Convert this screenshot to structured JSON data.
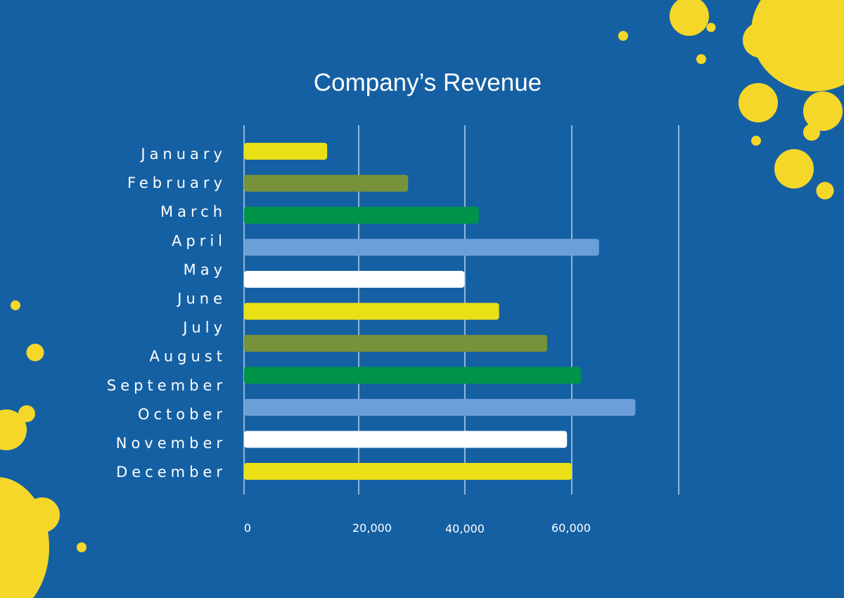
{
  "chart_data": {
    "type": "bar",
    "orientation": "horizontal",
    "title": "Company’s Revenue",
    "categories": [
      "January",
      "February",
      "March",
      "April",
      "May",
      "June",
      "July",
      "August",
      "September",
      "October",
      "November",
      "December"
    ],
    "values": [
      14500,
      29300,
      42600,
      65100,
      39900,
      46400,
      null,
      55400,
      61700,
      71900,
      59100,
      60000
    ],
    "bar_colors": [
      "#ebe016",
      "#76923a",
      "#00934a",
      "#6b9fd8",
      "#ffffff",
      "#ebe016",
      null,
      "#76923a",
      "#00934a",
      "#6b9fd8",
      "#ffffff",
      "#ebe016"
    ],
    "x_ticks": [
      "0",
      "20,000",
      "40,000",
      "60,000",
      ""
    ],
    "x_tick_values": [
      0,
      20000,
      40000,
      60000,
      80000
    ],
    "xlim": [
      0,
      80000
    ],
    "grid": true,
    "xlabel": "",
    "ylabel": ""
  },
  "colors": {
    "background": "#1560a3",
    "accent": "#f5d72a"
  }
}
